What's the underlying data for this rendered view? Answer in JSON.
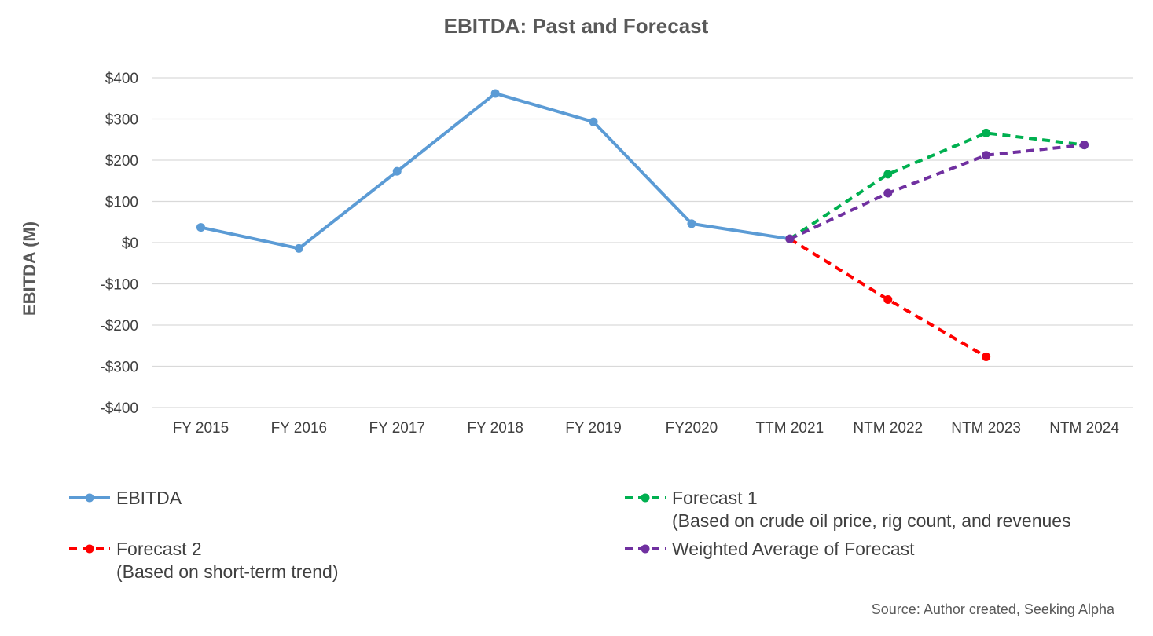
{
  "chart_data": {
    "type": "line",
    "title": "EBITDA: Past and Forecast",
    "xlabel": "",
    "ylabel": "EBITDA (M)",
    "categories": [
      "FY 2015",
      "FY 2016",
      "FY 2017",
      "FY 2018",
      "FY 2019",
      "FY2020",
      "TTM 2021",
      "NTM 2022",
      "NTM 2023",
      "NTM 2024"
    ],
    "ylim": [
      -400,
      400
    ],
    "yticks": [
      400,
      300,
      200,
      100,
      0,
      -100,
      -200,
      -300,
      -400
    ],
    "ytick_labels": [
      "$400",
      "$300",
      "$200",
      "$100",
      "$0",
      "-$100",
      "-$200",
      "-$300",
      "-$400"
    ],
    "grid": true,
    "legend_position": "bottom",
    "series": [
      {
        "key": "ebitda",
        "name": "EBITDA",
        "name_line2": "",
        "color": "#5B9BD5",
        "dashed": false,
        "values": [
          37,
          -14,
          173,
          362,
          293,
          46,
          9,
          null,
          null,
          null
        ]
      },
      {
        "key": "forecast1",
        "name": "Forecast 1",
        "name_line2": "(Based on crude oil price, rig count, and revenues",
        "color": "#00B050",
        "dashed": true,
        "values": [
          null,
          null,
          null,
          null,
          null,
          null,
          9,
          166,
          266,
          237
        ]
      },
      {
        "key": "forecast2",
        "name": "Forecast 2",
        "name_line2": "(Based on short-term trend)",
        "color": "#FF0000",
        "dashed": true,
        "values": [
          null,
          null,
          null,
          null,
          null,
          null,
          9,
          -138,
          -277,
          null
        ]
      },
      {
        "key": "weighted",
        "name": "Weighted Average of Forecast",
        "name_line2": "",
        "color": "#7030A0",
        "dashed": true,
        "values": [
          null,
          null,
          null,
          null,
          null,
          null,
          9,
          120,
          212,
          237
        ]
      }
    ],
    "source": "Source: Author created, Seeking Alpha"
  }
}
